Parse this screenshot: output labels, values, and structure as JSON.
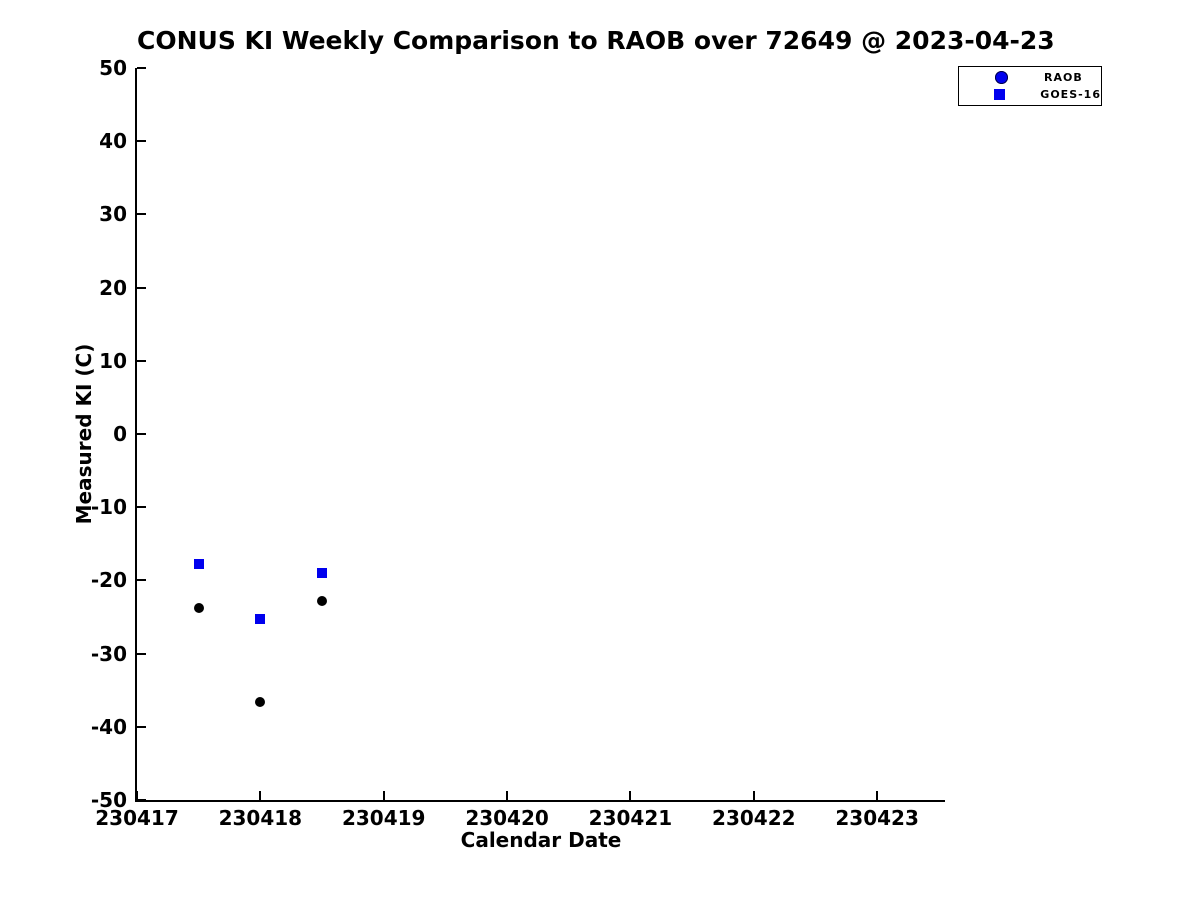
{
  "chart_data": {
    "type": "scatter",
    "title": "CONUS KI Weekly Comparison to RAOB over 72649 @ 2023-04-23",
    "xlabel": "Calendar Date",
    "ylabel": "Measured KI (C)",
    "xlim": [
      230417,
      230423.55
    ],
    "ylim": [
      -50,
      50
    ],
    "x_ticks": [
      230417,
      230418,
      230419,
      230420,
      230421,
      230422,
      230423
    ],
    "y_ticks": [
      50,
      40,
      30,
      20,
      10,
      0,
      -10,
      -20,
      -30,
      -40,
      -50
    ],
    "grid": false,
    "legend_position": "top-right",
    "series": [
      {
        "name": "RAOB",
        "marker": "circle",
        "plot_color": "#000000",
        "legend_color": "#0000ee",
        "points": [
          [
            230417.5,
            -23.8
          ],
          [
            230418.0,
            -36.6
          ],
          [
            230418.5,
            -22.8
          ]
        ]
      },
      {
        "name": "GOES-16",
        "marker": "square",
        "plot_color": "#0000ee",
        "legend_color": "#0000ee",
        "points": [
          [
            230417.5,
            -17.8
          ],
          [
            230418.0,
            -25.3
          ],
          [
            230418.5,
            -19.0
          ]
        ]
      }
    ]
  },
  "colors": {
    "axis": "#000000",
    "marker_blue": "#0000ee",
    "marker_black": "#000000",
    "background": "#ffffff"
  }
}
